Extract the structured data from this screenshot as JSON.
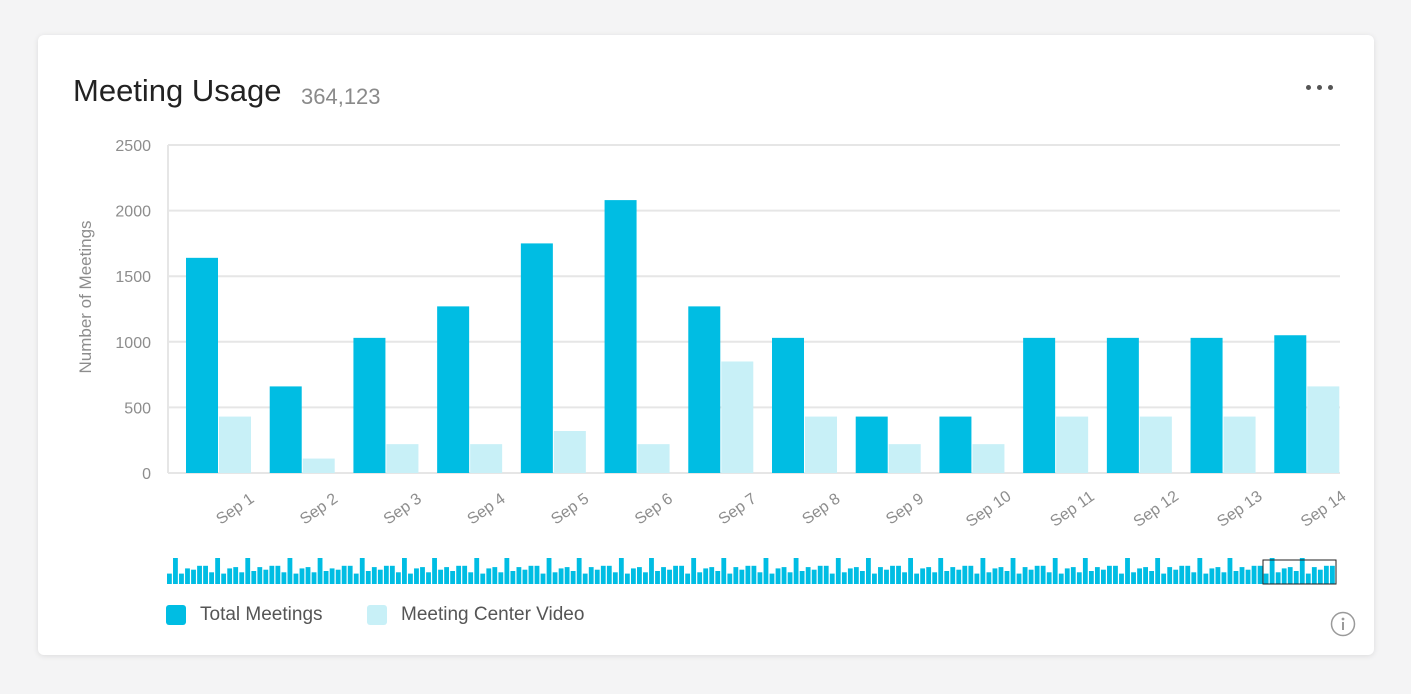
{
  "header": {
    "title": "Meeting Usage",
    "total": "364,123"
  },
  "colors": {
    "total": "#00bde3",
    "video": "#c8f0f7",
    "grid": "#e6e6e6",
    "axis_text": "#8d8d8d"
  },
  "chart_data": {
    "type": "bar",
    "ylabel": "Number of Meetings",
    "ylim": [
      0,
      2500
    ],
    "yticks": [
      "2500",
      "2000",
      "1500",
      "1000",
      "500",
      "0"
    ],
    "categories": [
      "Sep 1",
      "Sep 2",
      "Sep 3",
      "Sep 4",
      "Sep 5",
      "Sep 6",
      "Sep 7",
      "Sep 8",
      "Sep 9",
      "Sep 10",
      "Sep 11",
      "Sep 12",
      "Sep 13",
      "Sep 14"
    ],
    "series": [
      {
        "name": "Total Meetings",
        "values": [
          1640,
          660,
          1030,
          1270,
          1750,
          2080,
          1270,
          1030,
          430,
          430,
          1030,
          1030,
          1030,
          1050
        ]
      },
      {
        "name": "Meeting Center Video",
        "values": [
          430,
          110,
          220,
          220,
          320,
          220,
          850,
          430,
          220,
          220,
          430,
          430,
          430,
          660
        ]
      }
    ],
    "grid": true,
    "legend_position": "bottom-left",
    "overview_values": [
      0.4,
      1.0,
      0.4,
      0.6,
      0.55,
      0.7,
      0.7,
      0.45,
      1.0,
      0.4,
      0.6,
      0.65,
      0.45,
      1.0,
      0.5,
      0.65,
      0.55,
      0.7,
      0.7,
      0.45,
      1.0,
      0.4,
      0.6,
      0.65,
      0.45,
      1.0,
      0.5,
      0.6,
      0.55,
      0.7,
      0.7,
      0.4,
      1.0,
      0.5,
      0.65,
      0.55,
      0.7,
      0.7,
      0.45,
      1.0,
      0.4,
      0.6,
      0.65,
      0.45,
      1.0,
      0.55,
      0.65,
      0.5,
      0.7,
      0.7,
      0.45,
      1.0,
      0.4,
      0.6,
      0.65,
      0.45,
      1.0,
      0.5,
      0.65,
      0.55,
      0.7,
      0.7,
      0.4,
      1.0,
      0.45,
      0.6,
      0.65,
      0.5,
      1.0,
      0.4,
      0.65,
      0.55,
      0.7,
      0.7,
      0.45,
      1.0,
      0.4,
      0.6,
      0.65,
      0.45,
      1.0,
      0.5,
      0.65,
      0.55,
      0.7,
      0.7,
      0.4,
      1.0,
      0.45,
      0.6,
      0.65,
      0.5,
      1.0,
      0.4,
      0.65,
      0.55,
      0.7,
      0.7,
      0.45,
      1.0,
      0.4,
      0.6,
      0.65,
      0.45,
      1.0,
      0.5,
      0.65,
      0.55,
      0.7,
      0.7,
      0.4,
      1.0,
      0.45,
      0.6,
      0.65,
      0.5,
      1.0,
      0.4,
      0.65,
      0.55,
      0.7,
      0.7,
      0.45,
      1.0,
      0.4,
      0.6,
      0.65,
      0.45,
      1.0,
      0.5,
      0.65,
      0.55,
      0.7,
      0.7,
      0.4,
      1.0,
      0.45,
      0.6,
      0.65,
      0.5,
      1.0,
      0.4,
      0.65,
      0.55,
      0.7,
      0.7,
      0.45,
      1.0,
      0.4,
      0.6,
      0.65,
      0.45,
      1.0,
      0.5,
      0.65,
      0.55,
      0.7,
      0.7,
      0.4,
      1.0,
      0.45,
      0.6,
      0.65,
      0.5,
      1.0,
      0.4,
      0.65,
      0.55,
      0.7,
      0.7,
      0.45,
      1.0,
      0.4,
      0.6,
      0.65,
      0.45,
      1.0,
      0.5,
      0.65,
      0.55,
      0.7,
      0.7,
      0.4,
      1.0,
      0.45,
      0.6,
      0.65,
      0.5,
      1.0,
      0.4,
      0.65,
      0.55,
      0.7,
      0.7
    ]
  },
  "legend": {
    "total_label": "Total Meetings",
    "video_label": "Meeting Center Video"
  },
  "icons": {
    "more": "more-options-icon",
    "info": "info-icon"
  }
}
